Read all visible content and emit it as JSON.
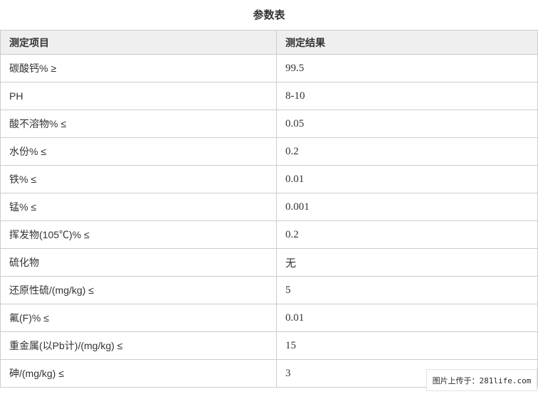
{
  "page": {
    "title": "参数表"
  },
  "table": {
    "headers": {
      "item": "测定项目",
      "result": "测定结果"
    },
    "rows": [
      {
        "item": "碳酸钙% ≥",
        "result": "99.5"
      },
      {
        "item": "PH",
        "result": "8-10"
      },
      {
        "item": "酸不溶物% ≤",
        "result": "0.05"
      },
      {
        "item": "水份% ≤",
        "result": "0.2"
      },
      {
        "item": "铁% ≤",
        "result": "0.01"
      },
      {
        "item": "锰% ≤",
        "result": "0.001"
      },
      {
        "item": "挥发物(105℃)% ≤",
        "result": "0.2"
      },
      {
        "item": "硫化物",
        "result": "无"
      },
      {
        "item": "还原性硫/(mg/kg) ≤",
        "result": "5"
      },
      {
        "item": "氟(F)% ≤",
        "result": "0.01"
      },
      {
        "item": "重金属(以Pb计)/(mg/kg) ≤",
        "result": "15"
      },
      {
        "item": "砷/(mg/kg) ≤",
        "result": "3"
      }
    ]
  },
  "watermark": {
    "text": "图片上传于：281life.com"
  },
  "colors": {
    "header_bg": "#efefef",
    "border": "#cccccc",
    "text": "#333333",
    "background": "#ffffff"
  }
}
